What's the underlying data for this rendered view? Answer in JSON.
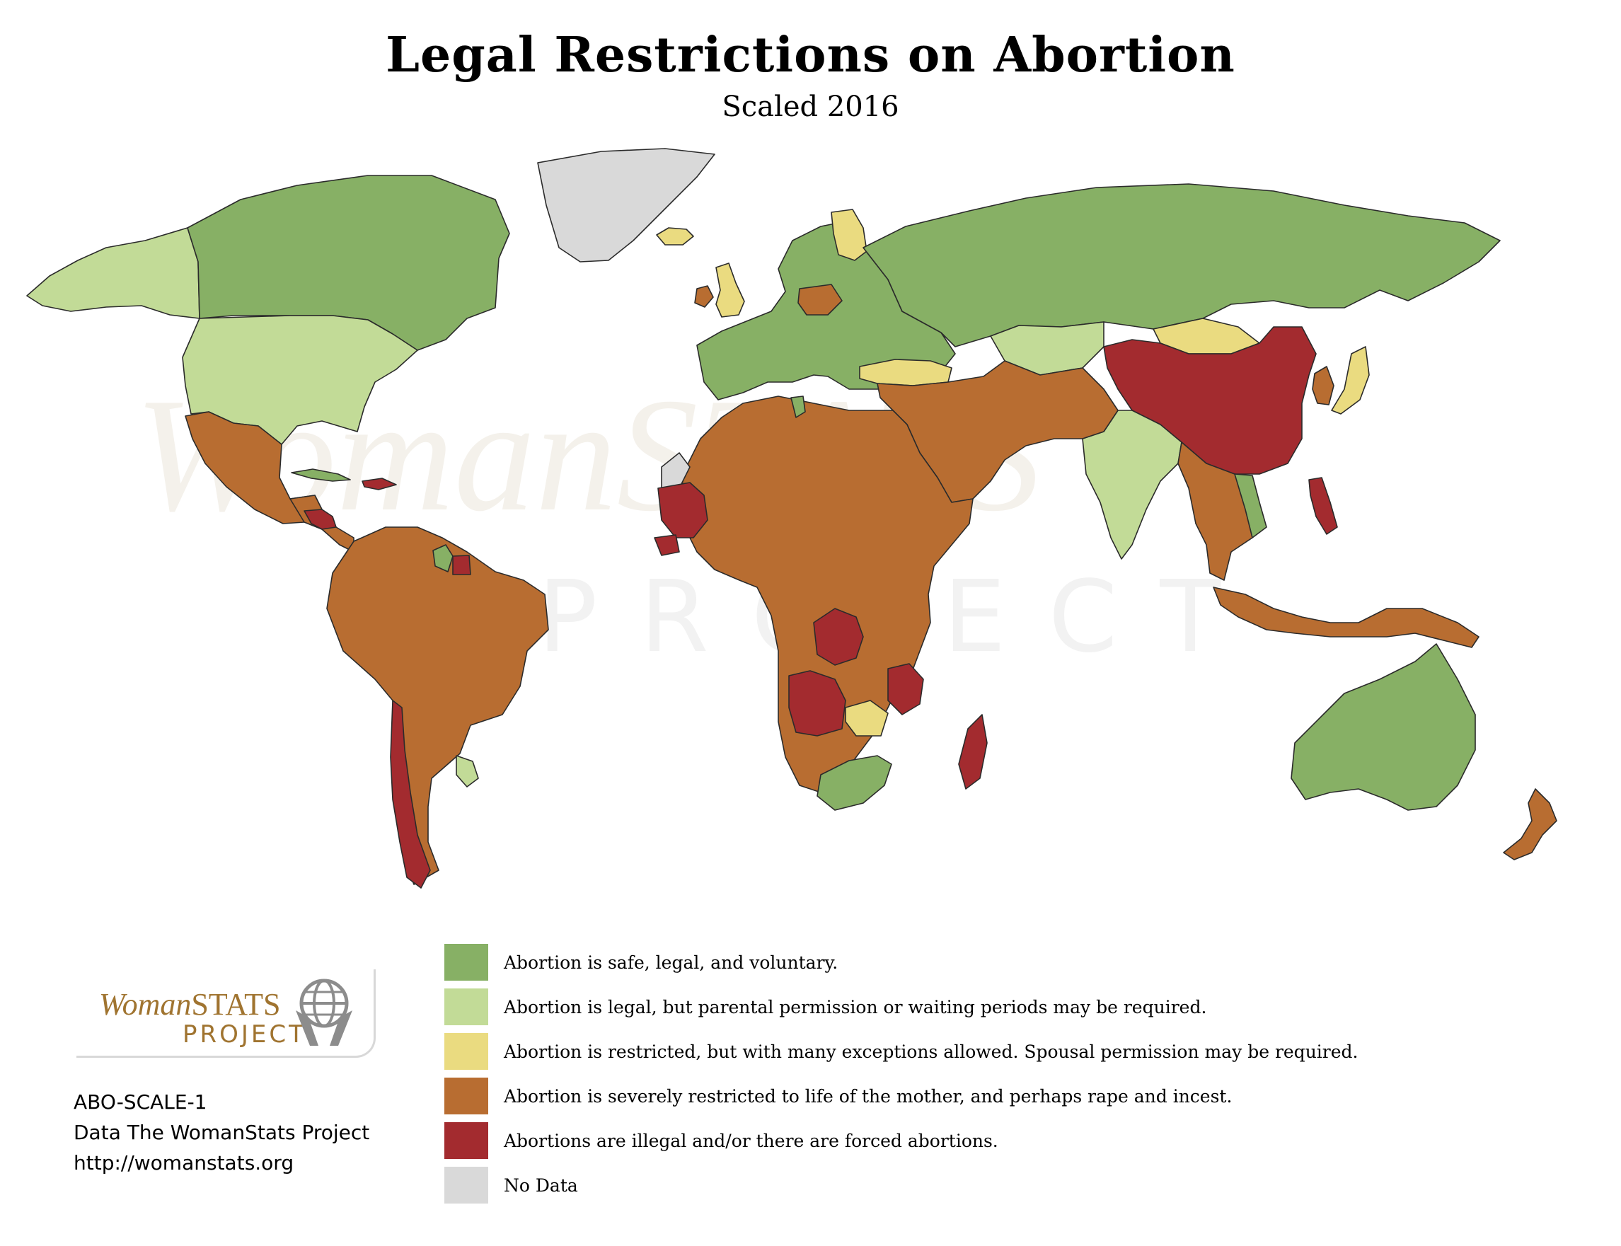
{
  "title": "Legal Restrictions on Abortion",
  "subtitle": "Scaled 2016",
  "colors": {
    "safe": "#87b065",
    "legal_with_conditions": "#c2db97",
    "restricted_exceptions": "#eadb80",
    "severely_restricted": "#b86d31",
    "illegal_forced": "#a32b2f",
    "no_data": "#d9d9d9",
    "ocean": "#ffffff",
    "border": "#2b2b2b"
  },
  "legend": [
    {
      "category": "safe",
      "label": "Abortion is safe, legal, and voluntary."
    },
    {
      "category": "legal_with_conditions",
      "label": "Abortion is legal, but parental permission or waiting periods may be required."
    },
    {
      "category": "restricted_exceptions",
      "label": "Abortion is restricted, but with many exceptions allowed. Spousal permission may be required."
    },
    {
      "category": "severely_restricted",
      "label": "Abortion is severely restricted to life of the mother, and perhaps rape and incest."
    },
    {
      "category": "illegal_forced",
      "label": "Abortions are illegal and/or there are forced abortions."
    },
    {
      "category": "no_data",
      "label": "No Data"
    }
  ],
  "logo": {
    "wordmark_lead": "Woman",
    "wordmark_tail": "STATS",
    "project": "PROJECT"
  },
  "source": {
    "code": "ABO-SCALE-1",
    "credit": "Data The WomanStats Project",
    "url": "http://womanstats.org"
  },
  "regions": [
    {
      "name": "Alaska",
      "category": "legal_with_conditions"
    },
    {
      "name": "Canada",
      "category": "safe"
    },
    {
      "name": "United States",
      "category": "legal_with_conditions"
    },
    {
      "name": "Greenland",
      "category": "no_data"
    },
    {
      "name": "Iceland",
      "category": "restricted_exceptions"
    },
    {
      "name": "Mexico",
      "category": "severely_restricted"
    },
    {
      "name": "Central America",
      "category": "severely_restricted"
    },
    {
      "name": "Nicaragua / El Salvador / Honduras",
      "category": "illegal_forced"
    },
    {
      "name": "Cuba",
      "category": "safe"
    },
    {
      "name": "Hispaniola",
      "category": "illegal_forced"
    },
    {
      "name": "South America",
      "category": "severely_restricted"
    },
    {
      "name": "Guyana",
      "category": "safe"
    },
    {
      "name": "Suriname",
      "category": "illegal_forced"
    },
    {
      "name": "Uruguay",
      "category": "legal_with_conditions"
    },
    {
      "name": "Chile",
      "category": "illegal_forced"
    },
    {
      "name": "Great Britain",
      "category": "restricted_exceptions"
    },
    {
      "name": "Ireland",
      "category": "severely_restricted"
    },
    {
      "name": "Europe",
      "category": "safe"
    },
    {
      "name": "Finland",
      "category": "restricted_exceptions"
    },
    {
      "name": "Poland",
      "category": "severely_restricted"
    },
    {
      "name": "Russia",
      "category": "safe"
    },
    {
      "name": "Kazakhstan",
      "category": "legal_with_conditions"
    },
    {
      "name": "Turkey",
      "category": "restricted_exceptions"
    },
    {
      "name": "Mongolia",
      "category": "restricted_exceptions"
    },
    {
      "name": "China",
      "category": "illegal_forced"
    },
    {
      "name": "Japan",
      "category": "restricted_exceptions"
    },
    {
      "name": "Korea",
      "category": "severely_restricted"
    },
    {
      "name": "India",
      "category": "legal_with_conditions"
    },
    {
      "name": "Middle East",
      "category": "severely_restricted"
    },
    {
      "name": "Southeast Asia",
      "category": "severely_restricted"
    },
    {
      "name": "Vietnam",
      "category": "safe"
    },
    {
      "name": "Philippines",
      "category": "illegal_forced"
    },
    {
      "name": "Indonesia / New Guinea",
      "category": "severely_restricted"
    },
    {
      "name": "Africa",
      "category": "severely_restricted"
    },
    {
      "name": "Western Sahara",
      "category": "no_data"
    },
    {
      "name": "Mauritania",
      "category": "illegal_forced"
    },
    {
      "name": "Senegal",
      "category": "illegal_forced"
    },
    {
      "name": "Congo",
      "category": "illegal_forced"
    },
    {
      "name": "Angola",
      "category": "illegal_forced"
    },
    {
      "name": "Tanzania",
      "category": "illegal_forced"
    },
    {
      "name": "Zambia",
      "category": "restricted_exceptions"
    },
    {
      "name": "South Africa",
      "category": "safe"
    },
    {
      "name": "Madagascar",
      "category": "illegal_forced"
    },
    {
      "name": "Tunisia",
      "category": "safe"
    },
    {
      "name": "Australia",
      "category": "safe"
    },
    {
      "name": "New Zealand",
      "category": "severely_restricted"
    }
  ],
  "watermark": {
    "lead": "WomanSTATS",
    "tail": "PROJECT"
  }
}
